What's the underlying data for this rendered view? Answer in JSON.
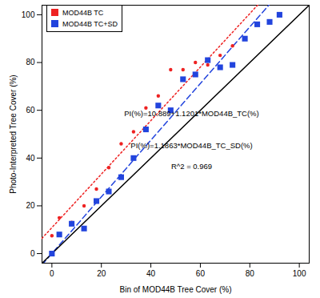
{
  "chart_data": {
    "type": "scatter",
    "x_label": "Bin of MOD44B Tree Cover (%)",
    "y_label": "Photo-Interpreted Tree Cover (%)",
    "xlim": [
      -4,
      104
    ],
    "ylim": [
      -4,
      104
    ],
    "xticks": [
      0,
      20,
      40,
      60,
      80,
      100
    ],
    "yticks": [
      0,
      20,
      40,
      60,
      80,
      100
    ],
    "grid": false,
    "legend": "top-left",
    "series": [
      {
        "name": "MOD44B TC",
        "color": "#ee2222",
        "marker": "circle",
        "x": [
          0,
          3,
          8,
          13,
          18,
          23,
          28,
          33,
          38,
          43,
          48,
          53,
          58,
          63,
          68,
          73,
          78,
          83,
          88,
          92
        ],
        "values": [
          7.5,
          15,
          13,
          20,
          27,
          36,
          46,
          51,
          61,
          66,
          77,
          77,
          80,
          79,
          83,
          87,
          90,
          96,
          97,
          100
        ]
      },
      {
        "name": "MOD44B TC+SD",
        "color": "#2244dd",
        "marker": "square",
        "x": [
          0,
          3,
          8,
          13,
          18,
          23,
          28,
          33,
          38,
          43,
          48,
          53,
          58,
          63,
          68,
          73,
          78,
          83,
          88,
          92
        ],
        "values": [
          0,
          8,
          12.5,
          10.5,
          22,
          26,
          32,
          40,
          52,
          62,
          60,
          73,
          75,
          81,
          78,
          79,
          90,
          96,
          97,
          100
        ]
      }
    ],
    "lines": [
      {
        "color": "#ee2222",
        "line_style": "dotted",
        "x": [
          -4,
          104
        ],
        "values": [
          6.4,
          127.4
        ]
      },
      {
        "color": "#2244dd",
        "line_style": "dashed",
        "x": [
          -4,
          104
        ],
        "values": [
          -4.7,
          123.4
        ]
      },
      {
        "color": "#000000",
        "line_style": "solid",
        "x": [
          -4,
          104
        ],
        "values": [
          -4,
          104
        ]
      }
    ],
    "annotations": [
      "PI(%)=10.889+1.1201*MOD44B_TC(%)",
      "PI(%)=1.1863*MOD44B_TC_SD(%)",
      "R^2 = 0.969"
    ]
  }
}
